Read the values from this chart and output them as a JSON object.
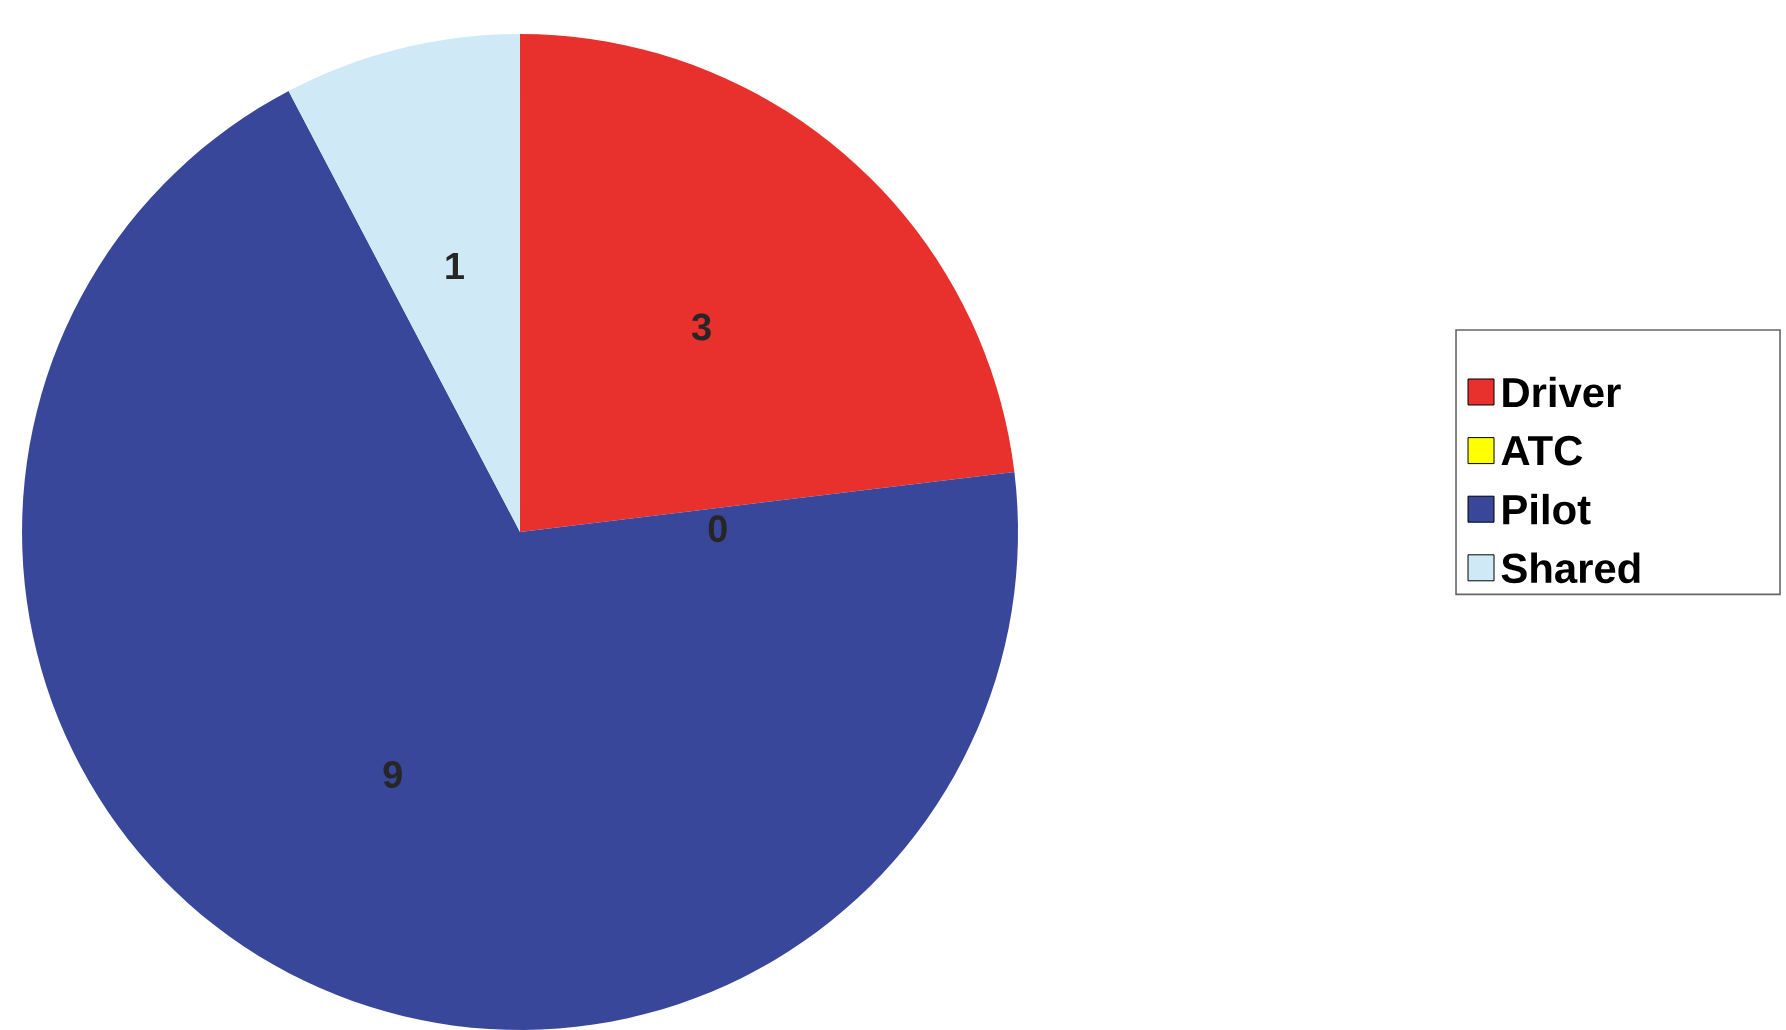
{
  "chart_data": {
    "type": "pie",
    "categories": [
      "Driver",
      "ATC",
      "Pilot",
      "Shared"
    ],
    "values": [
      3,
      0,
      9,
      1
    ],
    "colors": [
      "#e8302c",
      "#ffff00",
      "#39479a",
      "#cfeaf6"
    ],
    "value_labels": [
      "3",
      "0",
      "9",
      "1"
    ],
    "legend": "right"
  }
}
